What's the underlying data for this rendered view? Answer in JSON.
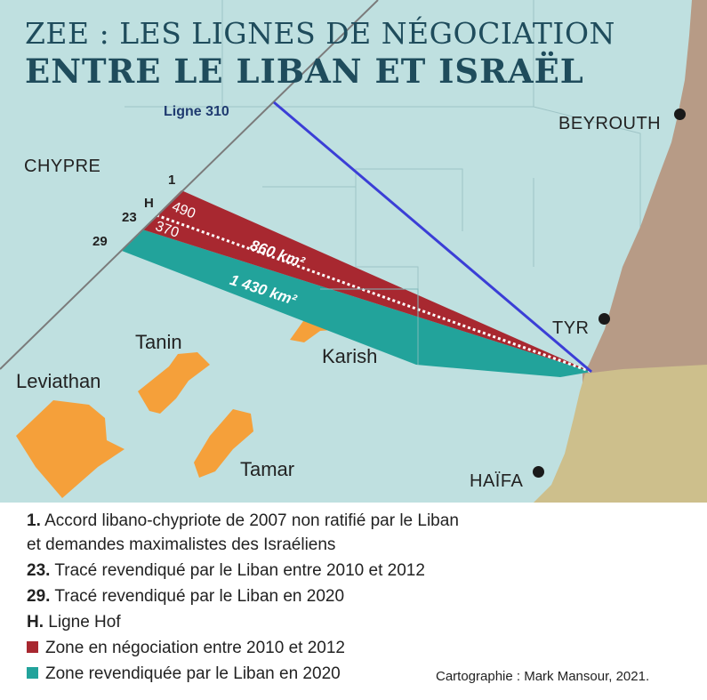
{
  "title": {
    "line1": "ZEE : LES LIGNES DE NÉGOCIATION",
    "line2": "ENTRE LE LIBAN ET ISRAËL"
  },
  "map": {
    "places": {
      "chypre": "CHYPRE",
      "beyrouth": "BEYROUTH",
      "tyr": "TYR",
      "haifa": "HAÏFA"
    },
    "fields": {
      "tanin": "Tanin",
      "leviathan": "Leviathan",
      "karish": "Karish",
      "tamar": "Tamar"
    },
    "line_labels": {
      "ligne310": "Ligne 310",
      "p1": "1",
      "h": "H",
      "p23": "23",
      "p29": "29"
    },
    "zone_labels": {
      "red_upper": "490",
      "red_lower": "370",
      "red_area": "860 km²",
      "teal_area": "1 430 km²"
    },
    "colors": {
      "sea": "#bfe0e0",
      "land": "#b79b86",
      "land_south": "#cdbf8c",
      "red_zone": "#a82830",
      "teal_zone": "#22a39b",
      "gas_field": "#f5a03a",
      "ligne310": "#3b3ed6"
    }
  },
  "legend": {
    "items": [
      {
        "key": "1.",
        "text": " Accord libano-chypriote de 2007 non ratifié par le Liban"
      },
      {
        "key": "",
        "text": "et demandes maximalistes des Israéliens"
      },
      {
        "key": "23.",
        "text": " Tracé revendiqué par le Liban entre 2010 et 2012"
      },
      {
        "key": "29.",
        "text": " Tracé revendiqué par le Liban en 2020"
      },
      {
        "key": "H.",
        "text": " Ligne Hof"
      },
      {
        "key": "",
        "text": "Zone en négociation entre 2010 et 2012",
        "swatch": "#a82830"
      },
      {
        "key": "",
        "text": "Zone revendiquée par le Liban en 2020",
        "swatch": "#22a39b"
      }
    ],
    "credit": "Cartographie : Mark Mansour, 2021."
  }
}
